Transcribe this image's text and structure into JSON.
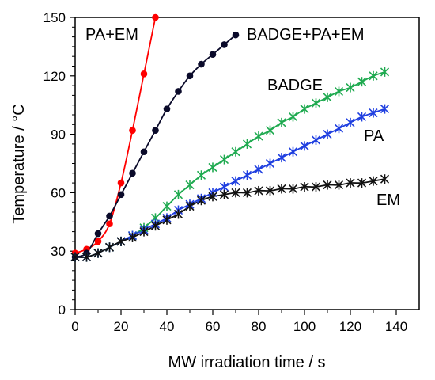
{
  "chart_data": {
    "type": "line",
    "xlabel": "MW irradiation time / s",
    "ylabel": "Temperature / °C",
    "xlim": [
      0,
      150
    ],
    "ylim": [
      0,
      150
    ],
    "xticks": [
      "0",
      "20",
      "40",
      "60",
      "80",
      "100",
      "120",
      "140"
    ],
    "yticks": [
      "0",
      "30",
      "60",
      "90",
      "120",
      "150"
    ],
    "grid": false,
    "series": [
      {
        "name": "PA+EM",
        "color": "#ff0000",
        "marker": "dot",
        "x": [
          0,
          5,
          10,
          15,
          20,
          25,
          30,
          35
        ],
        "y": [
          29,
          31,
          35,
          44,
          65,
          92,
          121,
          150
        ]
      },
      {
        "name": "BADGE+PA+EM",
        "color": "#0a0a2a",
        "marker": "dot",
        "x": [
          0,
          5,
          10,
          15,
          20,
          25,
          30,
          35,
          40,
          45,
          50,
          55,
          60,
          65,
          70
        ],
        "y": [
          27,
          29,
          39,
          48,
          59,
          70,
          81,
          92,
          103,
          112,
          120,
          126,
          131,
          136,
          141
        ]
      },
      {
        "name": "BADGE",
        "color": "#1faa50",
        "marker": "x",
        "x": [
          0,
          5,
          10,
          15,
          20,
          25,
          30,
          35,
          40,
          45,
          50,
          55,
          60,
          65,
          70,
          75,
          80,
          85,
          90,
          95,
          100,
          105,
          110,
          115,
          120,
          125,
          130,
          135
        ],
        "y": [
          27,
          27,
          29,
          32,
          35,
          38,
          42,
          47,
          53,
          59,
          64,
          69,
          73,
          77,
          81,
          85,
          89,
          92,
          96,
          99,
          103,
          106,
          109,
          112,
          114,
          117,
          120,
          122
        ]
      },
      {
        "name": "PA",
        "color": "#1f3fe0",
        "marker": "x",
        "x": [
          0,
          5,
          10,
          15,
          20,
          25,
          30,
          35,
          40,
          45,
          50,
          55,
          60,
          65,
          70,
          75,
          80,
          85,
          90,
          95,
          100,
          105,
          110,
          115,
          120,
          125,
          130,
          135
        ],
        "y": [
          27,
          27,
          29,
          32,
          35,
          38,
          41,
          44,
          47,
          51,
          54,
          57,
          60,
          63,
          66,
          69,
          72,
          75,
          78,
          81,
          84,
          87,
          90,
          93,
          96,
          99,
          101,
          103
        ]
      },
      {
        "name": "EM",
        "color": "#111111",
        "marker": "x",
        "x": [
          0,
          5,
          10,
          15,
          20,
          25,
          30,
          35,
          40,
          45,
          50,
          55,
          60,
          65,
          70,
          75,
          80,
          85,
          90,
          95,
          100,
          105,
          110,
          115,
          120,
          125,
          130,
          135
        ],
        "y": [
          27,
          27,
          29,
          32,
          35,
          37,
          40,
          43,
          46,
          49,
          53,
          56,
          58,
          59,
          60,
          60,
          61,
          61,
          62,
          62,
          63,
          63,
          64,
          64,
          65,
          65,
          66,
          67
        ]
      }
    ]
  }
}
